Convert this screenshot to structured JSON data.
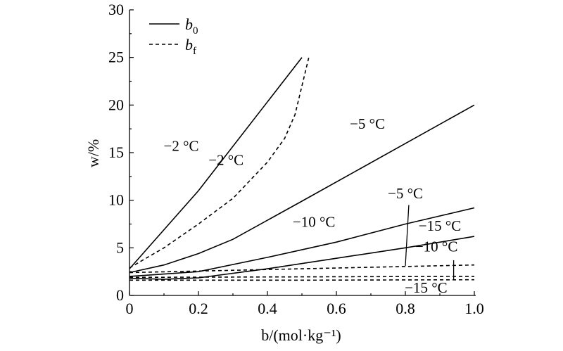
{
  "chart_data": {
    "type": "line",
    "xlabel": "b/(mol·kg⁻¹)",
    "ylabel": "w/%",
    "xlim": [
      0,
      1.0
    ],
    "ylim": [
      0,
      30
    ],
    "xticks": [
      "0",
      "0.2",
      "0.4",
      "0.6",
      "0.8",
      "1.0"
    ],
    "yticks": [
      "0",
      "5",
      "10",
      "15",
      "20",
      "25",
      "30"
    ],
    "grid": false,
    "legend_position": "top-left",
    "legend": [
      {
        "symbol": "b",
        "subscript": "0",
        "style": "solid"
      },
      {
        "symbol": "b",
        "subscript": "f",
        "style": "dashed"
      }
    ],
    "series": [
      {
        "group": "b0",
        "style": "solid",
        "x": [
          0,
          0.2,
          0.5
        ],
        "y": [
          2.8,
          11.0,
          25.0
        ]
      },
      {
        "group": "bf",
        "style": "dashed",
        "x": [
          0,
          0.1,
          0.2,
          0.3,
          0.4,
          0.45,
          0.48,
          0.5,
          0.52
        ],
        "y": [
          2.9,
          5.0,
          7.5,
          10.2,
          14.0,
          16.5,
          19.0,
          22.0,
          25.0
        ]
      },
      {
        "group": "b0",
        "style": "solid",
        "x": [
          0,
          0.1,
          0.2,
          0.3,
          0.5,
          1.0
        ],
        "y": [
          2.4,
          3.2,
          4.4,
          5.9,
          9.9,
          20.0
        ]
      },
      {
        "group": "b0",
        "style": "solid",
        "x": [
          0,
          0.2,
          0.4,
          0.6,
          0.8,
          1.0
        ],
        "y": [
          2.0,
          2.5,
          4.0,
          5.6,
          7.5,
          9.2
        ]
      },
      {
        "group": "b0",
        "style": "solid",
        "x": [
          0,
          0.1,
          0.2,
          0.4,
          0.6,
          0.8,
          1.0
        ],
        "y": [
          1.8,
          1.7,
          1.85,
          2.8,
          3.9,
          5.0,
          6.2
        ]
      },
      {
        "group": "bf",
        "style": "dashed",
        "x": [
          0,
          0.5,
          1.0
        ],
        "y": [
          2.4,
          2.8,
          3.2
        ]
      },
      {
        "group": "bf",
        "style": "dashed",
        "x": [
          0,
          0.5,
          1.0
        ],
        "y": [
          1.9,
          1.95,
          2.0
        ]
      },
      {
        "group": "bf",
        "style": "dashed",
        "x": [
          0,
          0.5,
          1.0
        ],
        "y": [
          1.6,
          1.6,
          1.65
        ]
      }
    ],
    "annotations": [
      {
        "text": "−2 °C",
        "x": 0.15,
        "y": 15.2
      },
      {
        "text": "−2 °C",
        "x": 0.28,
        "y": 13.7
      },
      {
        "text": "−5 °C",
        "x": 0.69,
        "y": 17.5
      },
      {
        "text": "−5 °C",
        "x": 0.8,
        "y": 10.2
      },
      {
        "text": "−10 °C",
        "x": 0.535,
        "y": 7.2
      },
      {
        "text": "−15 °C",
        "x": 0.9,
        "y": 6.8
      },
      {
        "text": "−10 °C",
        "x": 0.89,
        "y": 4.6
      },
      {
        "text": "−15 °C",
        "x": 0.86,
        "y": 0.3
      }
    ],
    "leaders": [
      {
        "x1": 0.81,
        "y1": 9.5,
        "x2": 0.8,
        "y2": 3.1
      },
      {
        "x1": 0.94,
        "y1": 3.7,
        "x2": 0.94,
        "y2": 1.7
      }
    ]
  }
}
